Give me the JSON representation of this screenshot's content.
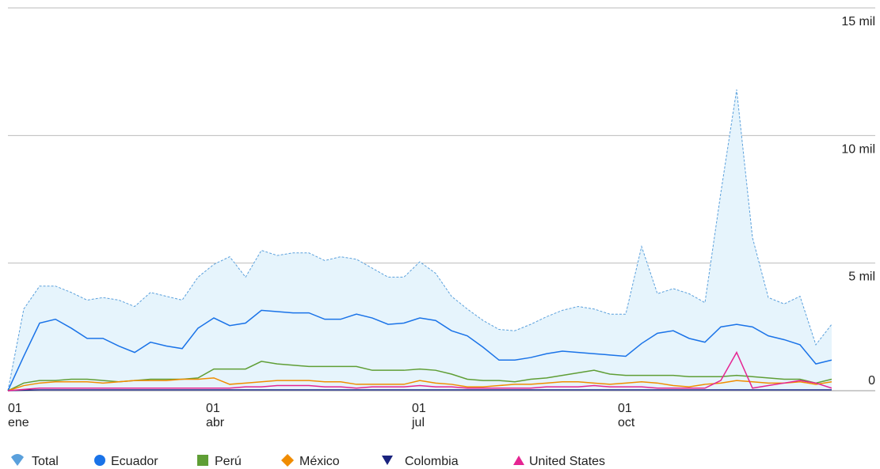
{
  "chart_data": {
    "type": "line",
    "categories": [
      "01 ene",
      null,
      null,
      null,
      null,
      null,
      null,
      null,
      null,
      null,
      null,
      null,
      null,
      "01 abr",
      null,
      null,
      null,
      null,
      null,
      null,
      null,
      null,
      null,
      null,
      null,
      null,
      "01 jul",
      null,
      null,
      null,
      null,
      null,
      null,
      null,
      null,
      null,
      null,
      null,
      null,
      "01 oct",
      null,
      null,
      null,
      null,
      null,
      null,
      null,
      null,
      null,
      null,
      null,
      null,
      null
    ],
    "series": [
      {
        "name": "Total",
        "color": "#5aa0dc",
        "fill": "#e6f4fc",
        "area": true,
        "dashed": true,
        "marker": "drop",
        "values": [
          0,
          3200,
          4100,
          4100,
          3850,
          3550,
          3650,
          3550,
          3300,
          3850,
          3700,
          3550,
          4450,
          4950,
          5250,
          4450,
          5500,
          5300,
          5400,
          5400,
          5100,
          5250,
          5150,
          4800,
          4450,
          4450,
          5050,
          4600,
          3700,
          3200,
          2750,
          2400,
          2350,
          2600,
          2900,
          3150,
          3300,
          3200,
          3000,
          3000,
          5650,
          3800,
          4000,
          3800,
          3450,
          7750,
          11800,
          6000,
          3650,
          3400,
          3700,
          1800,
          2600
        ]
      },
      {
        "name": "Ecuador",
        "color": "#1a73e8",
        "marker": "circle",
        "values": [
          0,
          1350,
          2650,
          2800,
          2450,
          2050,
          2050,
          1750,
          1500,
          1900,
          1750,
          1650,
          2450,
          2850,
          2550,
          2650,
          3150,
          3100,
          3050,
          3050,
          2800,
          2800,
          3000,
          2850,
          2600,
          2650,
          2850,
          2750,
          2350,
          2150,
          1700,
          1200,
          1200,
          1300,
          1450,
          1550,
          1500,
          1450,
          1400,
          1350,
          1850,
          2250,
          2350,
          2050,
          1900,
          2500,
          2600,
          2500,
          2150,
          2000,
          1800,
          1050,
          1200
        ]
      },
      {
        "name": "Perú",
        "color": "#5f9e35",
        "marker": "square",
        "values": [
          0,
          300,
          400,
          400,
          450,
          450,
          400,
          350,
          400,
          450,
          450,
          450,
          500,
          850,
          850,
          850,
          1150,
          1050,
          1000,
          950,
          950,
          950,
          950,
          800,
          800,
          800,
          850,
          800,
          650,
          450,
          400,
          400,
          350,
          450,
          500,
          600,
          700,
          800,
          650,
          600,
          600,
          600,
          600,
          550,
          550,
          550,
          600,
          550,
          500,
          450,
          450,
          300,
          450
        ]
      },
      {
        "name": "México",
        "color": "#f08c00",
        "marker": "diamond",
        "values": [
          0,
          200,
          300,
          350,
          350,
          350,
          300,
          350,
          400,
          400,
          400,
          450,
          450,
          500,
          250,
          300,
          350,
          400,
          400,
          400,
          350,
          350,
          250,
          250,
          250,
          250,
          400,
          300,
          250,
          150,
          150,
          200,
          250,
          250,
          300,
          350,
          350,
          300,
          250,
          300,
          350,
          300,
          200,
          150,
          250,
          300,
          400,
          350,
          300,
          300,
          350,
          250,
          350
        ]
      },
      {
        "name": "Colombia",
        "color": "#1a237e",
        "marker": "triangle-down",
        "values": [
          0,
          20,
          30,
          30,
          30,
          30,
          30,
          30,
          30,
          30,
          30,
          30,
          30,
          30,
          30,
          30,
          30,
          30,
          30,
          30,
          30,
          30,
          30,
          30,
          30,
          30,
          30,
          30,
          30,
          30,
          30,
          30,
          30,
          30,
          30,
          30,
          30,
          30,
          30,
          30,
          30,
          30,
          30,
          30,
          30,
          30,
          30,
          30,
          30,
          30,
          30,
          30,
          30
        ]
      },
      {
        "name": "United States",
        "color": "#e52592",
        "marker": "triangle-up",
        "values": [
          0,
          50,
          100,
          100,
          100,
          100,
          100,
          100,
          100,
          100,
          100,
          100,
          100,
          100,
          100,
          150,
          150,
          200,
          200,
          200,
          150,
          150,
          100,
          150,
          150,
          150,
          200,
          150,
          150,
          100,
          100,
          100,
          100,
          100,
          150,
          150,
          150,
          200,
          150,
          150,
          150,
          100,
          100,
          100,
          100,
          400,
          1500,
          100,
          200,
          300,
          400,
          300,
          100
        ]
      }
    ],
    "ylim": [
      0,
      15000
    ],
    "yticks": [
      {
        "value": 0,
        "label": "0"
      },
      {
        "value": 5000,
        "label": "5 mil"
      },
      {
        "value": 10000,
        "label": "10 mil"
      },
      {
        "value": 15000,
        "label": "15 mil"
      }
    ],
    "grid": true
  }
}
